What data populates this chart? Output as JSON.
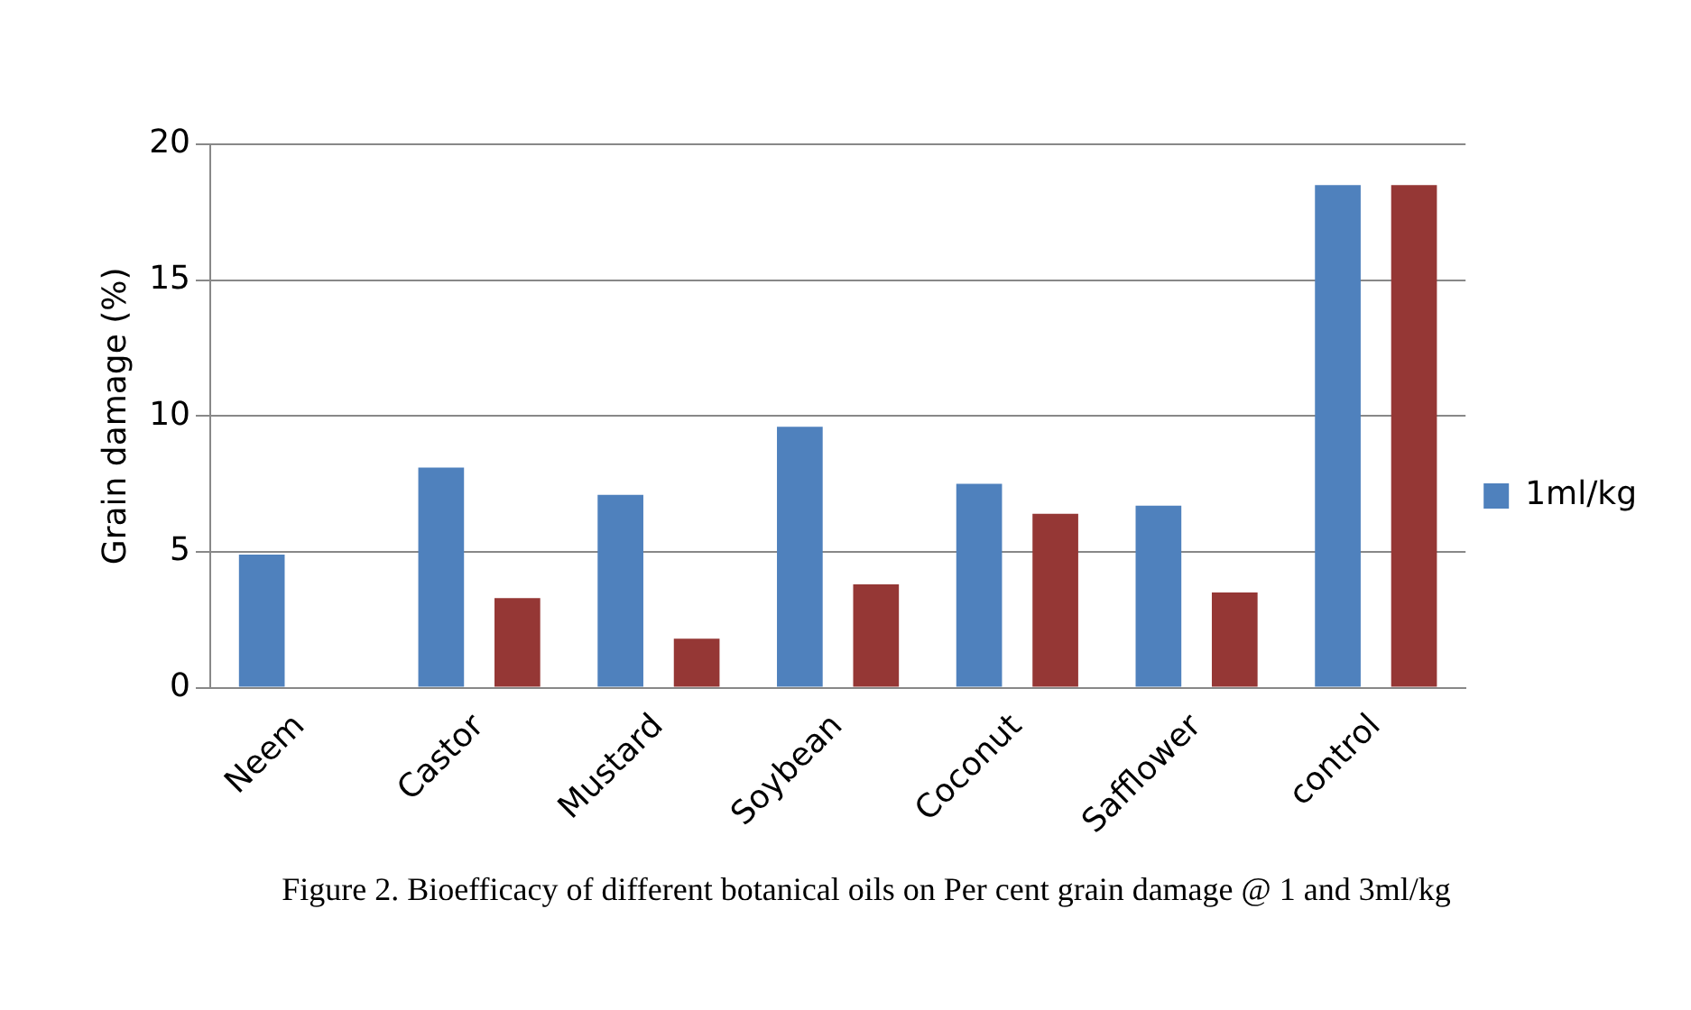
{
  "chart_data": {
    "type": "bar",
    "ylabel": "Grain damage (%)",
    "categories": [
      "Neem",
      "Castor",
      "Mustard",
      "Soybean",
      "Coconut",
      "Safflower",
      "control"
    ],
    "series": [
      {
        "name": "1ml/kg",
        "color": "#4f81bd",
        "values": [
          4.9,
          8.1,
          7.1,
          9.6,
          7.5,
          6.7,
          18.5
        ]
      },
      {
        "color": "#953735",
        "values": [
          0,
          3.3,
          1.8,
          3.8,
          6.4,
          3.5,
          18.5
        ]
      }
    ],
    "ylim": [
      0,
      20
    ],
    "yticks": [
      0,
      5,
      10,
      15,
      20
    ],
    "grid": "y",
    "legend": "right",
    "annotations": [
      "Figure 2. Bioefficacy of different botanical oils on Per cent grain damage @ 1 and 3ml/kg"
    ]
  }
}
